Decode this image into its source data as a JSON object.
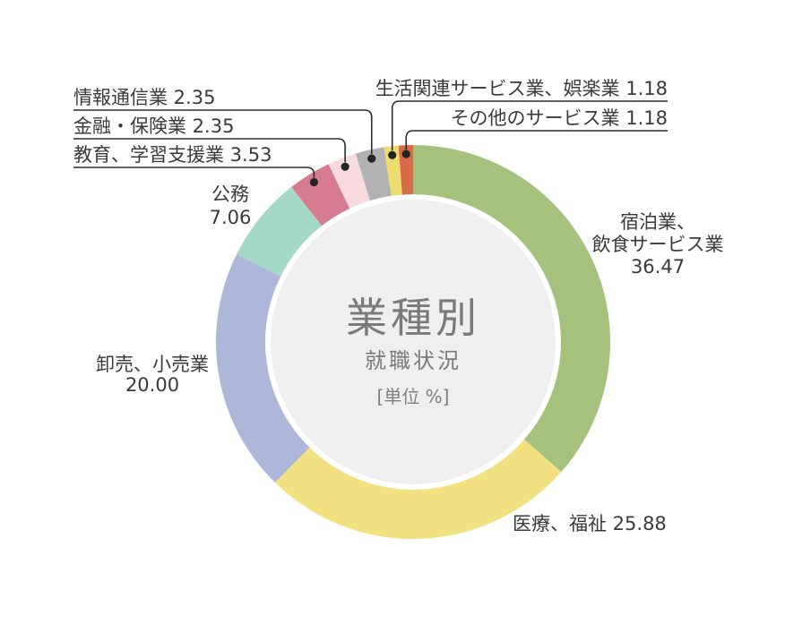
{
  "page": {
    "background": "#ffffff"
  },
  "center": {
    "title": "業種別",
    "subtitle": "就職状況",
    "unit": "[単位 %]"
  },
  "labels": {
    "hotel_line1": "宿泊業、",
    "hotel_line2": "飲食サービス業",
    "hotel_value": "36.47",
    "medical": "医療、福祉 25.88",
    "wholesale_line1": "卸売、小売業",
    "wholesale_value": "20.00",
    "komu_line1": "公務",
    "komu_value": "7.06",
    "education": "教育、学習支援業 3.53",
    "finance": "金融・保険業 2.35",
    "info": "情報通信業 2.35",
    "lifestyle": "生活関連サービス業、娯楽業 1.18",
    "other": "その他のサービス業 1.18"
  },
  "chart_data": {
    "type": "pie",
    "variant": "donut",
    "title": "業種別",
    "subtitle": "就職状況",
    "unit_label": "[単位 %]",
    "start_angle": "12 o'clock",
    "direction": "clockwise",
    "hole_color": "#f0efef",
    "line_color": "#2b2b2b",
    "dot_color": "#242424",
    "label_text_color": "#3a3a3a",
    "center_text_color": "#7a7a7a",
    "segments": [
      {
        "label": "宿泊業、飲食サービス業",
        "value": 36.47,
        "display": "36.47",
        "color": "#a5c27d"
      },
      {
        "label": "医療、福祉",
        "value": 25.88,
        "display": "25.88",
        "color": "#f1e181"
      },
      {
        "label": "卸売、小売業",
        "value": 20.0,
        "display": "20.00",
        "color": "#adb7d9"
      },
      {
        "label": "公務",
        "value": 7.06,
        "display": "7.06",
        "color": "#a4d9c7"
      },
      {
        "label": "教育、学習支援業",
        "value": 3.53,
        "display": "3.53",
        "color": "#d67b90"
      },
      {
        "label": "金融・保険業",
        "value": 2.35,
        "display": "2.35",
        "color": "#f8dbde"
      },
      {
        "label": "情報通信業",
        "value": 2.35,
        "display": "2.35",
        "color": "#b2b2b4"
      },
      {
        "label": "生活関連サービス業、娯楽業",
        "value": 1.18,
        "display": "1.18",
        "color": "#eddc6e"
      },
      {
        "label": "その他のサービス業",
        "value": 1.18,
        "display": "1.18",
        "color": "#d96c48"
      }
    ]
  }
}
